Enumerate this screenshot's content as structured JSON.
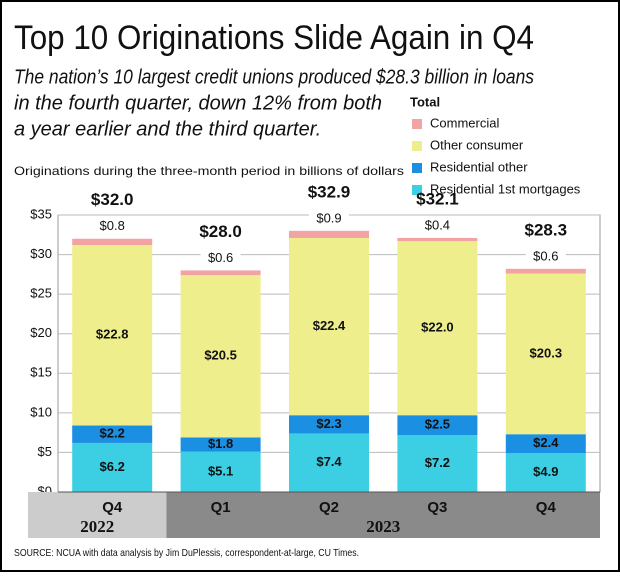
{
  "chart_data": {
    "type": "stacked_bar",
    "title": "Top 10 Originations Slide Again in Q4",
    "subtitle": [
      "The nation’s 10 largest credit unions produced $28.3 billion in loans",
      "in the fourth quarter, down 12% from both",
      "a year earlier and the third quarter."
    ],
    "y_label": "Originations during the three-month period in billions of dollars",
    "legend_title": "Total",
    "source": "SOURCE: NCUA with data analysis by Jim DuPlessis, correspondent-at-large, CU Times.",
    "categories": [
      "Q4",
      "Q1",
      "Q2",
      "Q3",
      "Q4"
    ],
    "groups": [
      {
        "label": "2022",
        "count": 1,
        "color": "#cccccc"
      },
      {
        "label": "2023",
        "count": 4,
        "color": "#8a8a8a"
      }
    ],
    "series": [
      {
        "name": "Residential 1st mortgages",
        "color": "#3ccfe3",
        "values": [
          6.2,
          5.1,
          7.4,
          7.2,
          4.9
        ],
        "value_labels": [
          "$6.2",
          "$5.1",
          "$7.4",
          "$7.2",
          "$4.9"
        ]
      },
      {
        "name": "Residential other",
        "color": "#1b8fe2",
        "values": [
          2.2,
          1.8,
          2.3,
          2.5,
          2.4
        ],
        "value_labels": [
          "$2.2",
          "$1.8",
          "$2.3",
          "$2.5",
          "$2.4"
        ]
      },
      {
        "name": "Other consumer",
        "color": "#eeee8c",
        "values": [
          22.8,
          20.5,
          22.4,
          22.0,
          20.3
        ],
        "value_labels": [
          "$22.8",
          "$20.5",
          "$22.4",
          "$22.0",
          "$20.3"
        ]
      },
      {
        "name": "Commercial",
        "color": "#f2a3a3",
        "values": [
          0.8,
          0.6,
          0.9,
          0.4,
          0.6
        ],
        "value_labels": [
          "$0.8",
          "$0.6",
          "$0.9",
          "$0.4",
          "$0.6"
        ]
      }
    ],
    "totals": [
      32.0,
      28.0,
      32.9,
      32.1,
      28.3
    ],
    "total_labels": [
      "$32.0",
      "$28.0",
      "$32.9",
      "$32.1",
      "$28.3"
    ],
    "ylim": [
      0,
      35
    ],
    "yticks": [
      {
        "value": 0,
        "label": "$0"
      },
      {
        "value": 5,
        "label": "$5"
      },
      {
        "value": 10,
        "label": "$10"
      },
      {
        "value": 15,
        "label": "$15"
      },
      {
        "value": 20,
        "label": "$20"
      },
      {
        "value": 25,
        "label": "$25"
      },
      {
        "value": 30,
        "label": "$30"
      },
      {
        "value": 35,
        "label": "$35"
      }
    ],
    "grid": true
  }
}
